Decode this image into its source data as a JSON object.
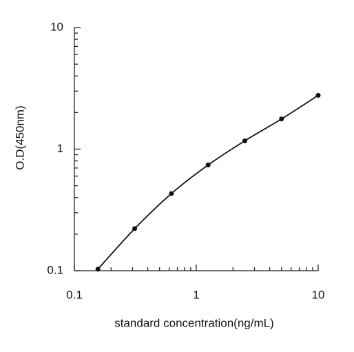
{
  "chart_data": {
    "type": "line",
    "x_label": "standard concentration(ng/mL)",
    "y_label": "O.D(450nm)",
    "x": [
      0.156,
      0.3125,
      0.625,
      1.25,
      2.5,
      5,
      10
    ],
    "series": [
      {
        "color": "#111111",
        "values": [
          0.103,
          0.222,
          0.431,
          0.741,
          1.17,
          1.77,
          2.77
        ]
      }
    ],
    "x_log": true,
    "y_log": true,
    "xlim": [
      0.1,
      10
    ],
    "ylim": [
      0.1,
      10
    ],
    "xticks": [
      0.1,
      1,
      10
    ],
    "yticks": [
      0.1,
      1,
      10
    ],
    "xminorticks": [
      0.2,
      0.3,
      0.4,
      0.5,
      0.6,
      0.7,
      0.8,
      0.9,
      2,
      3,
      4,
      5,
      6,
      7,
      8,
      9
    ],
    "yminorticks": [
      0.2,
      0.3,
      0.4,
      0.5,
      0.6,
      0.7,
      0.8,
      0.9,
      2,
      3,
      4,
      5,
      6,
      7,
      8,
      9
    ],
    "grid": false
  }
}
